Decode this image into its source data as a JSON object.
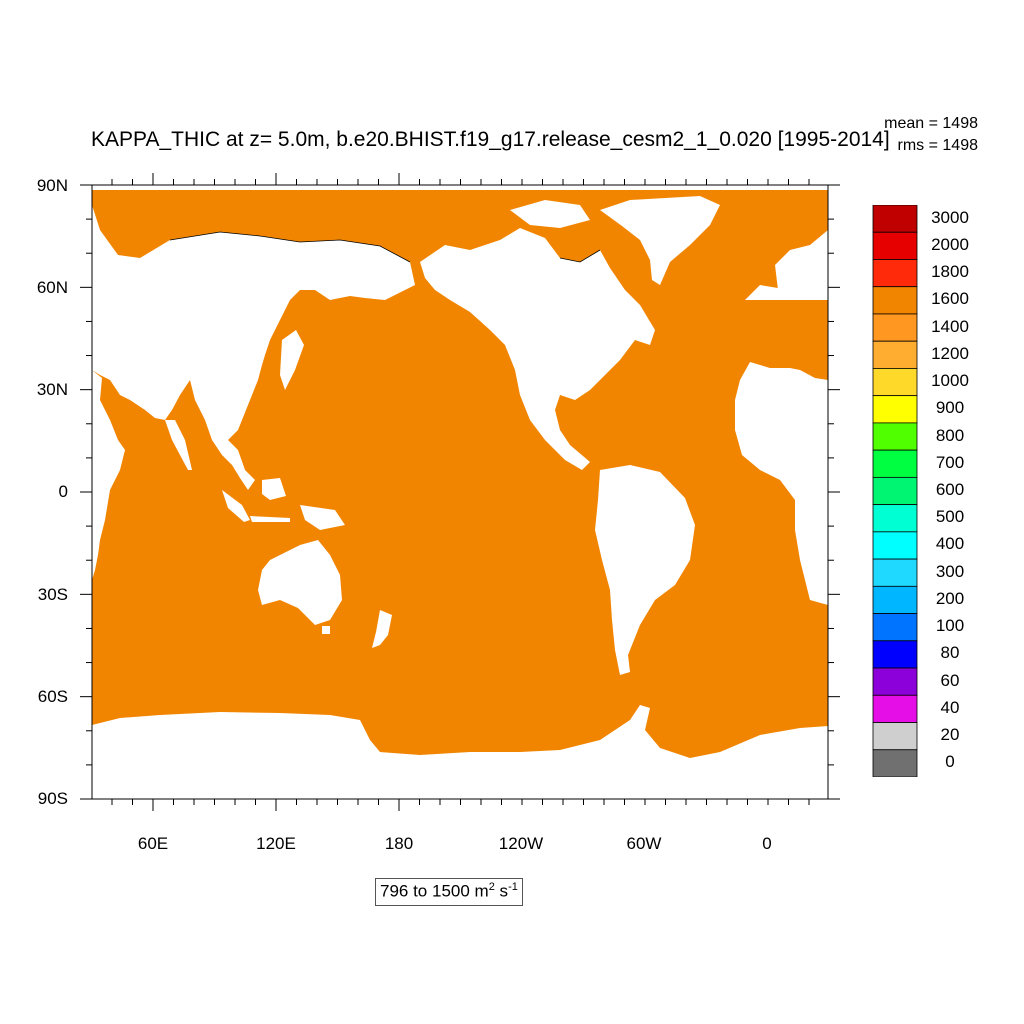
{
  "title": "KAPPA_THIC at z=   5.0m, b.e20.BHIST.f19_g17.release_cesm2_1_0.020 [1995-2014]",
  "stats": {
    "mean": "mean = 1498",
    "rms": "rms = 1498"
  },
  "range_label": {
    "text": "796 to 1500 m",
    "unit_exp1": "2",
    "unit_mid": " s",
    "unit_exp2": "-1"
  },
  "lat_labels": [
    "90N",
    "60N",
    "30N",
    "0",
    "30S",
    "60S",
    "90S"
  ],
  "lon_labels": [
    "60E",
    "120E",
    "180",
    "120W",
    "60W",
    "0"
  ],
  "colorbar": {
    "levels": [
      "0",
      "20",
      "40",
      "60",
      "80",
      "100",
      "200",
      "300",
      "400",
      "500",
      "600",
      "700",
      "800",
      "900",
      "1000",
      "1200",
      "1400",
      "1600",
      "1800",
      "2000",
      "3000"
    ],
    "colors": [
      "#707070",
      "#cfcfcf",
      "#e60ee6",
      "#8c00d9",
      "#0000ff",
      "#0073ff",
      "#00b6ff",
      "#1fd9ff",
      "#00ffff",
      "#00ffd2",
      "#00f573",
      "#00ff40",
      "#50ff00",
      "#ffff00",
      "#ffd92a",
      "#ffad30",
      "#ff9720",
      "#f28500",
      "#ff2a0a",
      "#e60000",
      "#c00000"
    ]
  },
  "map": {
    "ocean_color": "#f28500",
    "land_color": "#ffffff",
    "field_value_range": [
      796,
      1500
    ]
  }
}
